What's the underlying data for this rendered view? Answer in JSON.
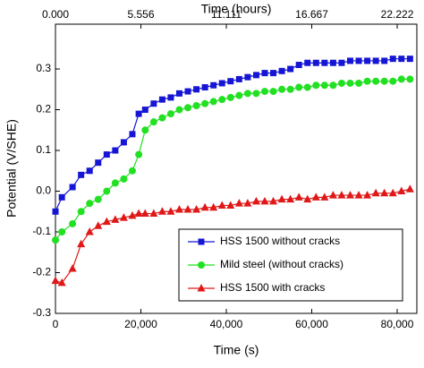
{
  "chart_data": {
    "type": "line",
    "xlabel": "Time (s)",
    "x2label": "Time (hours)",
    "ylabel": "Potential (V/SHE)",
    "x": [
      0,
      1500,
      4000,
      6000,
      8000,
      10000,
      12000,
      14000,
      16000,
      18000,
      19500,
      21000,
      23000,
      25000,
      27000,
      29000,
      31000,
      33000,
      35000,
      37000,
      39000,
      41000,
      43000,
      45000,
      47000,
      49000,
      51000,
      53000,
      55000,
      57000,
      59000,
      61000,
      63000,
      65000,
      67000,
      69000,
      71000,
      73000,
      75000,
      77000,
      79000,
      81000,
      83000
    ],
    "series": [
      {
        "name": "HSS 1500 without cracks",
        "color": "#1515d6",
        "marker": "square",
        "values": [
          -0.05,
          -0.015,
          0.01,
          0.04,
          0.05,
          0.07,
          0.09,
          0.1,
          0.12,
          0.14,
          0.19,
          0.2,
          0.215,
          0.225,
          0.23,
          0.24,
          0.245,
          0.25,
          0.255,
          0.26,
          0.265,
          0.27,
          0.275,
          0.28,
          0.285,
          0.29,
          0.29,
          0.295,
          0.3,
          0.31,
          0.315,
          0.315,
          0.315,
          0.315,
          0.315,
          0.32,
          0.32,
          0.32,
          0.32,
          0.32,
          0.325,
          0.325,
          0.325
        ]
      },
      {
        "name": "Mild steel (without cracks)",
        "color": "#22e022",
        "marker": "circle",
        "values": [
          -0.12,
          -0.1,
          -0.08,
          -0.05,
          -0.03,
          -0.02,
          0.0,
          0.02,
          0.03,
          0.05,
          0.09,
          0.15,
          0.17,
          0.18,
          0.19,
          0.2,
          0.205,
          0.21,
          0.215,
          0.22,
          0.225,
          0.23,
          0.235,
          0.24,
          0.24,
          0.245,
          0.245,
          0.25,
          0.25,
          0.255,
          0.255,
          0.26,
          0.26,
          0.26,
          0.265,
          0.265,
          0.265,
          0.27,
          0.27,
          0.27,
          0.27,
          0.275,
          0.275
        ]
      },
      {
        "name": "HSS 1500 with cracks",
        "color": "#e01818",
        "marker": "triangle",
        "values": [
          -0.22,
          -0.225,
          -0.19,
          -0.13,
          -0.1,
          -0.085,
          -0.075,
          -0.07,
          -0.065,
          -0.06,
          -0.055,
          -0.055,
          -0.055,
          -0.05,
          -0.05,
          -0.045,
          -0.045,
          -0.045,
          -0.04,
          -0.04,
          -0.035,
          -0.035,
          -0.03,
          -0.03,
          -0.025,
          -0.025,
          -0.025,
          -0.02,
          -0.02,
          -0.015,
          -0.02,
          -0.015,
          -0.015,
          -0.01,
          -0.01,
          -0.01,
          -0.01,
          -0.01,
          -0.005,
          -0.005,
          -0.005,
          0.0,
          0.005
        ]
      }
    ],
    "xlim": [
      0,
      84600
    ],
    "xticks": [
      0,
      {
        "value": 20000,
        "label": "20,000"
      },
      {
        "value": 40000,
        "label": "40,000"
      },
      {
        "value": 60000,
        "label": "60,000"
      },
      {
        "value": 80000,
        "label": "80,000"
      }
    ],
    "x2lim": [
      0,
      23.5
    ],
    "x2ticks": [
      {
        "value": 0,
        "label": "0.000"
      },
      5.556,
      11.111,
      16.667,
      22.222
    ],
    "ylim": [
      -0.3,
      0.41
    ],
    "yticks": [
      -0.3,
      -0.2,
      -0.1,
      {
        "value": 0,
        "label": "0.0"
      },
      0.1,
      0.2,
      0.3
    ],
    "legend": "lower right",
    "grid": false
  }
}
